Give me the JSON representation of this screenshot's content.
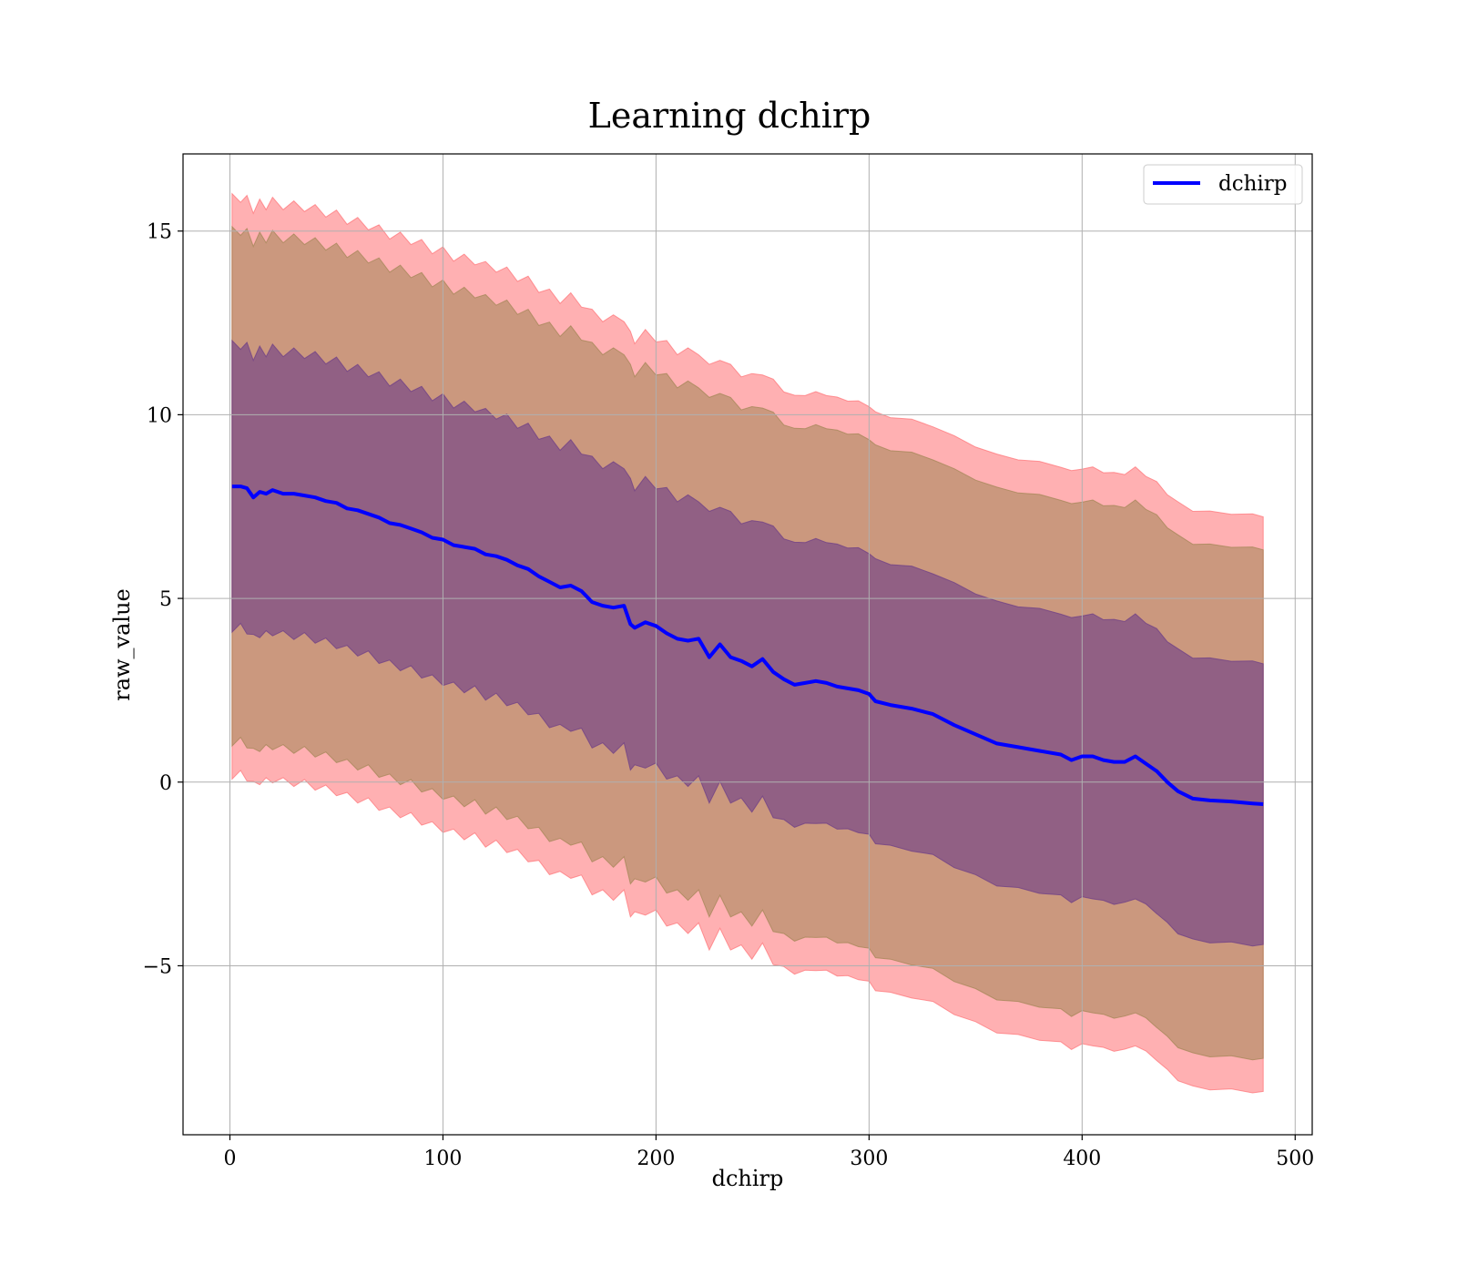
{
  "chart_data": {
    "type": "area",
    "title": "Learning dchirp",
    "xlabel": "dchirp",
    "ylabel": "raw_value",
    "xlim": [
      -22,
      508
    ],
    "ylim": [
      -9.6,
      17.1
    ],
    "xticks": [
      0,
      100,
      200,
      300,
      400,
      500
    ],
    "xtick_labels": [
      "0",
      "100",
      "200",
      "300",
      "400",
      "500"
    ],
    "yticks": [
      -5,
      0,
      5,
      10,
      15
    ],
    "ytick_labels": [
      "−5",
      "0",
      "5",
      "10",
      "15"
    ],
    "grid": true,
    "legend": {
      "position": "top-right",
      "entries": [
        "dchirp"
      ]
    },
    "colors": {
      "line": "#0000ff",
      "band_outer": "#ff6f73",
      "band_middle": "#a08553",
      "band_inner": "#6a3a88"
    },
    "series": [
      {
        "name": "dchirp",
        "x": [
          1,
          5,
          8,
          11,
          14,
          17,
          20,
          25,
          30,
          35,
          40,
          45,
          50,
          55,
          60,
          65,
          70,
          75,
          80,
          85,
          90,
          95,
          100,
          105,
          110,
          115,
          120,
          125,
          130,
          135,
          140,
          145,
          150,
          155,
          160,
          165,
          170,
          175,
          180,
          185,
          188,
          190,
          195,
          200,
          205,
          210,
          215,
          220,
          225,
          230,
          235,
          240,
          245,
          250,
          255,
          260,
          265,
          270,
          275,
          280,
          285,
          290,
          295,
          300,
          303,
          310,
          320,
          330,
          340,
          350,
          360,
          370,
          380,
          390,
          395,
          400,
          405,
          410,
          415,
          420,
          425,
          430,
          435,
          440,
          445,
          452,
          460,
          470,
          480,
          485
        ],
        "y": [
          8.05,
          8.05,
          8.0,
          7.75,
          7.9,
          7.85,
          7.95,
          7.85,
          7.85,
          7.8,
          7.75,
          7.65,
          7.6,
          7.45,
          7.4,
          7.3,
          7.2,
          7.05,
          7.0,
          6.9,
          6.8,
          6.65,
          6.6,
          6.45,
          6.4,
          6.35,
          6.2,
          6.15,
          6.05,
          5.9,
          5.8,
          5.6,
          5.45,
          5.3,
          5.35,
          5.2,
          4.9,
          4.8,
          4.75,
          4.8,
          4.3,
          4.2,
          4.35,
          4.25,
          4.05,
          3.9,
          3.85,
          3.9,
          3.4,
          3.75,
          3.4,
          3.3,
          3.15,
          3.35,
          3.0,
          2.8,
          2.65,
          2.7,
          2.75,
          2.7,
          2.6,
          2.55,
          2.5,
          2.4,
          2.2,
          2.1,
          2.0,
          1.85,
          1.55,
          1.3,
          1.05,
          0.95,
          0.85,
          0.75,
          0.6,
          0.7,
          0.7,
          0.6,
          0.55,
          0.55,
          0.7,
          0.5,
          0.3,
          0.0,
          -0.25,
          -0.45,
          -0.5,
          -0.53,
          -0.58,
          -0.6
        ]
      }
    ],
    "bands": [
      {
        "name": "outer",
        "half_width": 7.85
      },
      {
        "name": "middle",
        "half_width": 6.95
      },
      {
        "name": "inner",
        "half_width": 3.85
      }
    ]
  }
}
